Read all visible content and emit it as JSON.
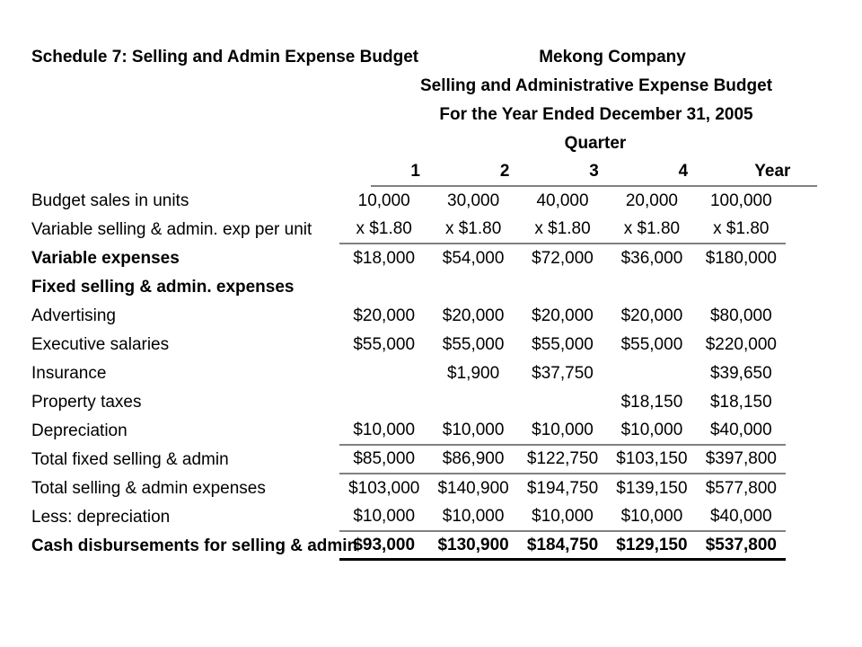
{
  "header": {
    "schedule_label": "Schedule 7: Selling and Admin Expense Budget",
    "company": "Mekong Company",
    "title": "Selling and Administrative Expense Budget",
    "period": "For the Year Ended December 31, 2005",
    "quarter_label": "Quarter",
    "columns": [
      "1",
      "2",
      "3",
      "4",
      "Year"
    ]
  },
  "colors": {
    "rule_gray": "#808080",
    "rule_black": "#000000",
    "text": "#000000",
    "background": "#ffffff"
  },
  "table": {
    "rows": [
      {
        "label": "Budget sales in units",
        "values": [
          "10,000",
          "30,000",
          "40,000",
          "20,000",
          "100,000"
        ],
        "bold_label": false,
        "bold_values": false,
        "rule_below": "none"
      },
      {
        "label": "Variable selling & admin. exp per unit",
        "values": [
          "x $1.80",
          "x $1.80",
          "x $1.80",
          "x $1.80",
          "x $1.80"
        ],
        "bold_label": false,
        "bold_values": false,
        "rule_below": "gray"
      },
      {
        "label": "Variable expenses",
        "values": [
          "$18,000",
          "$54,000",
          "$72,000",
          "$36,000",
          "$180,000"
        ],
        "bold_label": true,
        "bold_values": false,
        "rule_below": "none"
      },
      {
        "label": "Fixed selling & admin. expenses",
        "values": [
          "",
          "",
          "",
          "",
          ""
        ],
        "bold_label": true,
        "bold_values": false,
        "rule_below": "none"
      },
      {
        "label": "Advertising",
        "values": [
          "$20,000",
          "$20,000",
          "$20,000",
          "$20,000",
          "$80,000"
        ],
        "bold_label": false,
        "bold_values": false,
        "rule_below": "none"
      },
      {
        "label": "Executive salaries",
        "values": [
          "$55,000",
          "$55,000",
          "$55,000",
          "$55,000",
          "$220,000"
        ],
        "bold_label": false,
        "bold_values": false,
        "rule_below": "none"
      },
      {
        "label": "Insurance",
        "values": [
          "",
          "$1,900",
          "$37,750",
          "",
          "$39,650"
        ],
        "bold_label": false,
        "bold_values": false,
        "rule_below": "none"
      },
      {
        "label": "Property taxes",
        "values": [
          "",
          "",
          "",
          "$18,150",
          "$18,150"
        ],
        "bold_label": false,
        "bold_values": false,
        "rule_below": "none"
      },
      {
        "label": "Depreciation",
        "values": [
          "$10,000",
          "$10,000",
          "$10,000",
          "$10,000",
          "$40,000"
        ],
        "bold_label": false,
        "bold_values": false,
        "rule_below": "gray"
      },
      {
        "label": "Total fixed selling & admin",
        "values": [
          "$85,000",
          "$86,900",
          "$122,750",
          "$103,150",
          "$397,800"
        ],
        "bold_label": false,
        "bold_values": false,
        "rule_below": "gray"
      },
      {
        "label": "Total selling & admin expenses",
        "values": [
          "$103,000",
          "$140,900",
          "$194,750",
          "$139,150",
          "$577,800"
        ],
        "bold_label": false,
        "bold_values": false,
        "rule_below": "none"
      },
      {
        "label": "Less: depreciation",
        "values": [
          "$10,000",
          "$10,000",
          "$10,000",
          "$10,000",
          "$40,000"
        ],
        "bold_label": false,
        "bold_values": false,
        "rule_below": "gray"
      },
      {
        "label": "Cash disbursements for selling & admin",
        "values": [
          "$93,000",
          "$130,900",
          "$184,750",
          "$129,150",
          "$537,800"
        ],
        "bold_label": true,
        "bold_values": true,
        "rule_below": "black"
      }
    ]
  }
}
